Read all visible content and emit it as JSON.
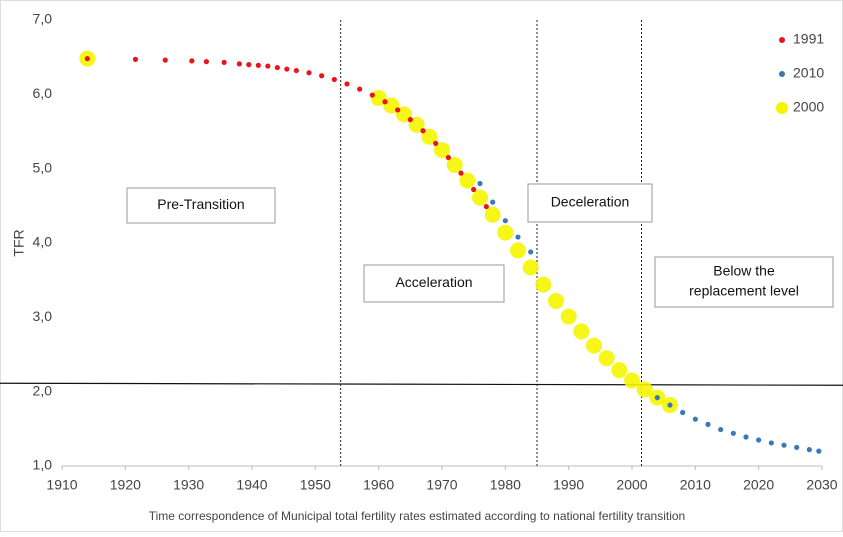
{
  "chart_data": {
    "type": "scatter",
    "xlabel": "Time correspondence of Municipal total fertility rates estimated according to national fertility transition",
    "ylabel": "TFR",
    "xlim": [
      1910,
      2030
    ],
    "xticks": [
      1910,
      1920,
      1930,
      1940,
      1950,
      1960,
      1970,
      1980,
      1990,
      2000,
      2010,
      2020,
      2030
    ],
    "ylim": [
      1,
      7
    ],
    "yticks": [
      {
        "value": 1,
        "label": "1,0"
      },
      {
        "value": 2,
        "label": "2,0"
      },
      {
        "value": 3,
        "label": "3,0"
      },
      {
        "value": 4,
        "label": "4,0"
      },
      {
        "value": 5,
        "label": "5,0"
      },
      {
        "value": 6,
        "label": "6,0"
      },
      {
        "value": 7,
        "label": "7,0"
      }
    ],
    "hline": 2.1,
    "vlines": [
      1954,
      1985,
      2001.5
    ],
    "annotations": [
      [
        "Pre-Transition"
      ],
      [
        "Acceleration"
      ],
      [
        "Deceleration"
      ],
      [
        "Below the",
        "replacement level"
      ]
    ],
    "series": [
      {
        "name": "1991",
        "color": "#e8161b",
        "x": [
          1914,
          1921.6,
          1926.3,
          1930.5,
          1932.8,
          1935.6,
          1938,
          1939.5,
          1941,
          1942.5,
          1944,
          1945.5,
          1947,
          1949,
          1951,
          1953,
          1955,
          1957,
          1959,
          1961,
          1963,
          1965,
          1967,
          1969,
          1971,
          1973,
          1975,
          1977
        ],
        "values": [
          6.48,
          6.47,
          6.46,
          6.45,
          6.44,
          6.43,
          6.41,
          6.4,
          6.39,
          6.38,
          6.36,
          6.34,
          6.32,
          6.29,
          6.25,
          6.2,
          6.14,
          6.07,
          5.99,
          5.9,
          5.79,
          5.66,
          5.51,
          5.34,
          5.15,
          4.94,
          4.72,
          4.49
        ]
      },
      {
        "name": "2010",
        "color": "#3b78b8",
        "x": [
          1976,
          1978,
          1980,
          1982,
          1984,
          2004,
          2006,
          2008,
          2010,
          2012,
          2014,
          2016,
          2018,
          2020,
          2022,
          2024,
          2026,
          2028,
          2029.5
        ],
        "values": [
          4.8,
          4.55,
          4.3,
          4.08,
          3.88,
          1.92,
          1.82,
          1.72,
          1.63,
          1.56,
          1.49,
          1.44,
          1.39,
          1.35,
          1.31,
          1.28,
          1.25,
          1.22,
          1.2
        ]
      },
      {
        "name": "2000",
        "color": "#f5f500",
        "x": [
          1914,
          1960,
          1962,
          1964,
          1966,
          1968,
          1970,
          1972,
          1974,
          1976,
          1978,
          1980,
          1982,
          1984,
          1986,
          1988,
          1990,
          1992,
          1994,
          1996,
          1998,
          2000,
          2002,
          2004,
          2006
        ],
        "values": [
          6.48,
          5.95,
          5.85,
          5.73,
          5.59,
          5.43,
          5.25,
          5.05,
          4.84,
          4.61,
          4.38,
          4.14,
          3.9,
          3.67,
          3.44,
          3.22,
          3.01,
          2.81,
          2.62,
          2.45,
          2.29,
          2.15,
          2.03,
          1.92,
          1.82
        ]
      }
    ]
  }
}
